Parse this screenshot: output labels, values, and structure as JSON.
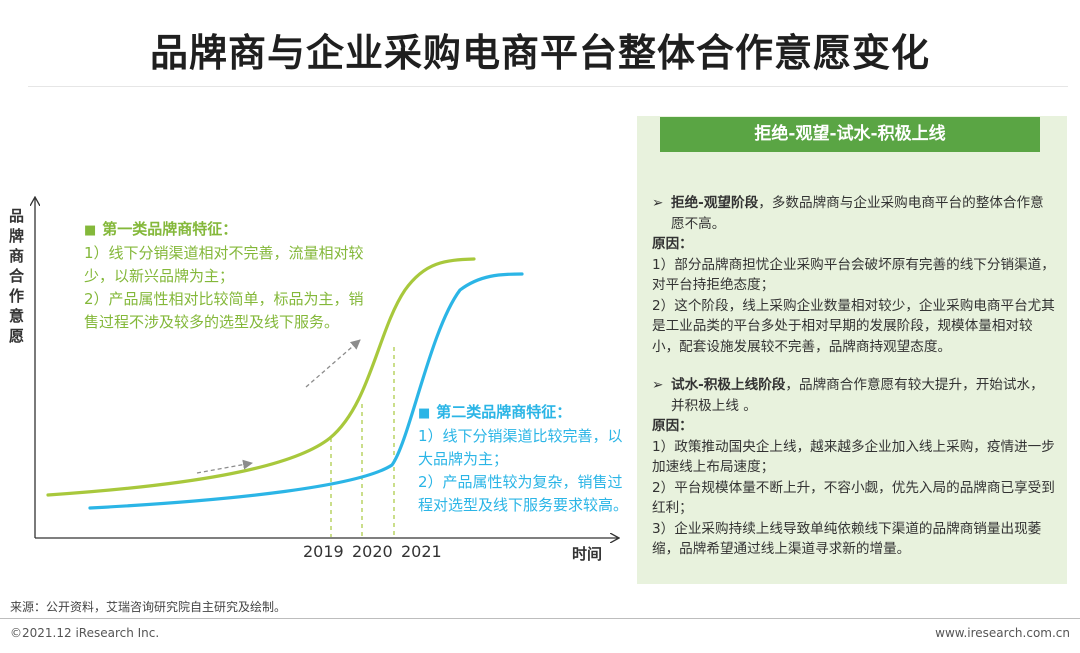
{
  "title": "品牌商与企业采购电商平台整体合作意愿变化",
  "diagram": {
    "y_axis_label": "品牌商合作意愿",
    "x_axis_label": "时间",
    "years": [
      "2019",
      "2020",
      "2021"
    ],
    "colors": {
      "green": "#a8c83c",
      "cyan": "#2bb5e6",
      "axis": "#333333",
      "arrow": "#8c8c8c"
    },
    "feature_first": {
      "heading": "第一类品牌商特征：",
      "lines": [
        "1）线下分销渠道相对不完善，流量相对较少，以新兴品牌为主；",
        "2）产品属性相对比较简单，标品为主，销售过程不涉及较多的选型及线下服务。"
      ]
    },
    "feature_second": {
      "heading": "第二类品牌商特征：",
      "lines": [
        "1）线下分销渠道比较完善，以大品牌为主；",
        "2）产品属性较为复杂，销售过程对选型及线下服务要求较高。"
      ]
    }
  },
  "panel": {
    "header": "拒绝-观望-试水-积极上线",
    "stage1_title": "拒绝-观望阶段",
    "stage1_text": "，多数品牌商与企业采购电商平台的整体合作意愿不高。",
    "reason_label": "原因：",
    "stage1_reasons": [
      "1）部分品牌商担忧企业采购平台会破坏原有完善的线下分销渠道，对平台持拒绝态度；",
      "2）这个阶段，线上采购企业数量相对较少，企业采购电商平台尤其是工业品类的平台多处于相对早期的发展阶段，规模体量相对较小，配套设施发展较不完善，品牌商持观望态度。"
    ],
    "stage2_title": "试水-积极上线阶段",
    "stage2_text": "，品牌商合作意愿有较大提升，开始试水，并积极上线 。",
    "stage2_reasons": [
      "1）政策推动国央企上线，越来越多企业加入线上采购，疫情进一步加速线上布局速度；",
      "2）平台规模体量不断上升，不容小觑，优先入局的品牌商已享受到红利；",
      "3）企业采购持续上线导致单纯依赖线下渠道的品牌商销量出现萎缩，品牌希望通过线上渠道寻求新的增量。"
    ]
  },
  "footer": {
    "source": "来源：公开资料，艾瑞咨询研究院自主研究及绘制。",
    "copyright": "©2021.12 iResearch Inc.",
    "website": "www.iresearch.com.cn"
  }
}
